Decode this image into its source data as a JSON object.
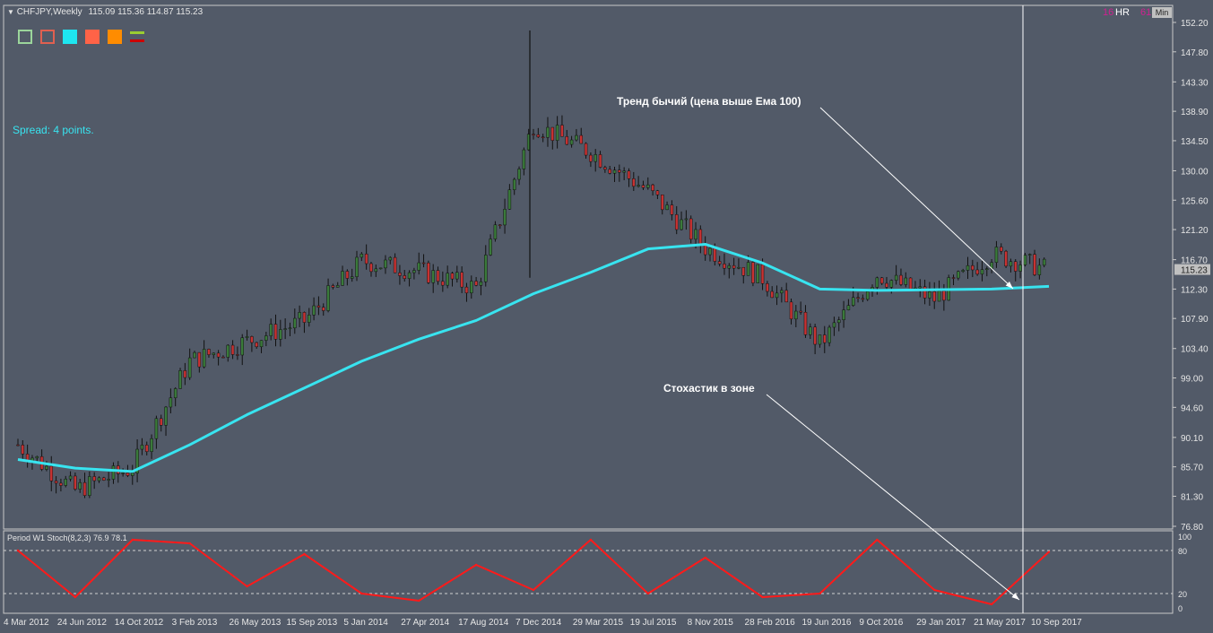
{
  "header": {
    "menu_arrow": "down-triangle-icon",
    "symbol": "CHFJPY,Weekly",
    "ohlc": "115.09 115.36 114.87 115.23"
  },
  "toolbar_buttons": [
    {
      "name": "green-outline-square",
      "color": "#9bd59b",
      "style": "outline"
    },
    {
      "name": "red-outline-square",
      "color": "#e06050",
      "style": "outline"
    },
    {
      "name": "cyan-square",
      "color": "#1ee6f0",
      "style": "fill"
    },
    {
      "name": "tomato-square",
      "color": "#ff6347",
      "style": "fill"
    },
    {
      "name": "orange-square",
      "color": "#ff8c00",
      "style": "fill"
    },
    {
      "name": "lime-red-lines",
      "color": "#9acd32",
      "color2": "#cc0000",
      "style": "lines"
    }
  ],
  "top_right": {
    "num1": "16",
    "hr": "HR",
    "num2": "61",
    "min": "Min"
  },
  "spread_text": "Spread: 4 points.",
  "annotations": {
    "trend": "Тренд бычий (цена выше Ема 100)",
    "stoch": "Стохастик в зоне"
  },
  "price_axis": {
    "ticks": [
      "152.20",
      "147.80",
      "143.30",
      "138.90",
      "134.50",
      "130.00",
      "125.60",
      "121.20",
      "116.70",
      "112.30",
      "107.90",
      "103.40",
      "99.00",
      "94.60",
      "90.10",
      "85.70",
      "81.30",
      "76.80"
    ],
    "current_price": "115.23"
  },
  "stoch_axis": {
    "ticks": [
      "100",
      "80",
      "20",
      "0"
    ]
  },
  "stoch_label": "Period W1 Stoch(8,2,3) 76.9 78.1",
  "time_axis": [
    "4 Mar 2012",
    "24 Jun 2012",
    "14 Oct 2012",
    "3 Feb 2013",
    "26 May 2013",
    "15 Sep 2013",
    "5 Jan 2014",
    "27 Apr 2014",
    "17 Aug 2014",
    "7 Dec 2014",
    "29 Mar 2015",
    "19 Jul 2015",
    "8 Nov 2015",
    "28 Feb 2016",
    "19 Jun 2016",
    "9 Oct 2016",
    "29 Jan 2017",
    "21 May 2017",
    "10 Sep 2017"
  ],
  "colors": {
    "background": "#525a68",
    "bull_candle": "#3a7a3a",
    "bear_candle": "#c83232",
    "ema": "#38e4f0",
    "stochastic": "#ff1a1a",
    "grid_level": "#d0d0d0",
    "vline": "#ffffff"
  },
  "chart_data": [
    {
      "type": "line",
      "name": "price",
      "x": [
        "4 Mar 2012",
        "24 Jun 2012",
        "14 Oct 2012",
        "3 Feb 2013",
        "26 May 2013",
        "15 Sep 2013",
        "5 Jan 2014",
        "27 Apr 2014",
        "17 Aug 2014",
        "7 Dec 2014",
        "29 Mar 2015",
        "19 Jul 2015",
        "8 Nov 2015",
        "28 Feb 2016",
        "19 Jun 2016",
        "9 Oct 2016",
        "29 Jan 2017",
        "21 May 2017",
        "10 Sep 2017"
      ],
      "series": [
        {
          "name": "close",
          "values": [
            89.0,
            82.2,
            85.5,
            101.5,
            104.5,
            107.5,
            116.5,
            115.0,
            112.5,
            137.0,
            132.8,
            127.0,
            118.5,
            114.0,
            104.0,
            114.5,
            110.8,
            117.5,
            115.23
          ]
        },
        {
          "name": "EMA 100",
          "values": [
            86.8,
            85.5,
            85.0,
            89.0,
            93.5,
            97.5,
            101.5,
            104.8,
            107.6,
            111.6,
            114.8,
            118.3,
            119.0,
            116.2,
            112.3,
            112.1,
            112.2,
            112.3,
            112.7
          ]
        }
      ],
      "ylim": [
        76.8,
        152.2
      ]
    },
    {
      "type": "line",
      "name": "stochastic",
      "x": [
        "4 Mar 2012",
        "24 Jun 2012",
        "14 Oct 2012",
        "3 Feb 2013",
        "26 May 2013",
        "15 Sep 2013",
        "5 Jan 2014",
        "27 Apr 2014",
        "17 Aug 2014",
        "7 Dec 2014",
        "29 Mar 2015",
        "19 Jul 2015",
        "8 Nov 2015",
        "28 Feb 2016",
        "19 Jun 2016",
        "9 Oct 2016",
        "29 Jan 2017",
        "21 May 2017",
        "10 Sep 2017"
      ],
      "series": [
        {
          "name": "Stoch(8,2,3)",
          "values": [
            80,
            15,
            95,
            90,
            30,
            75,
            20,
            10,
            60,
            25,
            95,
            20,
            70,
            15,
            20,
            95,
            25,
            5,
            78.1
          ]
        }
      ],
      "levels": [
        20,
        80
      ],
      "ylim": [
        0,
        100
      ]
    }
  ]
}
